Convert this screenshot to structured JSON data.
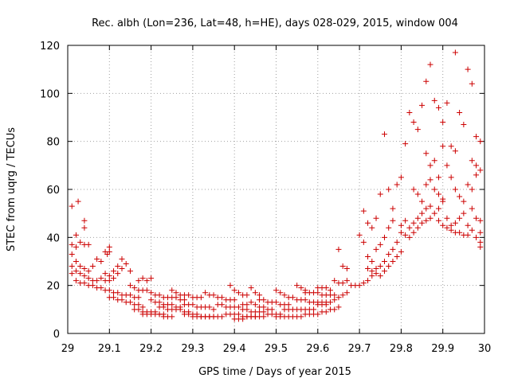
{
  "chart_data": {
    "type": "scatter",
    "title": "Rec. albh (Lon=236, Lat=48, h=HE), days 028-029, 2015, window 004",
    "xlabel": "GPS time / Days of year 2015",
    "ylabel": "STEC from uqrg / TECUs",
    "xlim": [
      29,
      30
    ],
    "ylim": [
      0,
      120
    ],
    "x_ticks": [
      29,
      29.1,
      29.2,
      29.3,
      29.4,
      29.5,
      29.6,
      29.7,
      29.8,
      29.9,
      30
    ],
    "x_tick_labels": [
      "29",
      "29.1",
      "29.2",
      "29.3",
      "29.4",
      "29.5",
      "29.6",
      "29.7",
      "29.8",
      "29.9",
      "30"
    ],
    "y_ticks": [
      0,
      20,
      40,
      60,
      80,
      100,
      120
    ],
    "y_tick_labels": [
      "0",
      "20",
      "40",
      "60",
      "80",
      "100",
      "120"
    ],
    "grid": true,
    "marker": "plus",
    "color": "#cc0000",
    "points": [
      [
        29.01,
        53
      ],
      [
        29.025,
        55
      ],
      [
        29.04,
        44
      ],
      [
        29.04,
        47
      ],
      [
        29.01,
        37
      ],
      [
        29.02,
        36
      ],
      [
        29.03,
        38
      ],
      [
        29.04,
        37
      ],
      [
        29.05,
        37
      ],
      [
        29.01,
        33
      ],
      [
        29.02,
        30
      ],
      [
        29.03,
        28
      ],
      [
        29.04,
        27
      ],
      [
        29.05,
        26
      ],
      [
        29.06,
        28
      ],
      [
        29.07,
        31
      ],
      [
        29.01,
        28
      ],
      [
        29.02,
        26
      ],
      [
        29.03,
        25
      ],
      [
        29.04,
        24
      ],
      [
        29.05,
        23
      ],
      [
        29.06,
        22
      ],
      [
        29.07,
        22
      ],
      [
        29.08,
        23
      ],
      [
        29.01,
        25
      ],
      [
        29.02,
        22
      ],
      [
        29.03,
        21
      ],
      [
        29.04,
        21
      ],
      [
        29.05,
        20
      ],
      [
        29.06,
        20
      ],
      [
        29.07,
        19
      ],
      [
        29.08,
        19
      ],
      [
        29.02,
        41
      ],
      [
        29.09,
        34
      ],
      [
        29.095,
        33
      ],
      [
        29.1,
        36
      ],
      [
        29.1,
        34
      ],
      [
        29.08,
        30
      ],
      [
        29.09,
        25
      ],
      [
        29.1,
        24
      ],
      [
        29.09,
        22
      ],
      [
        29.1,
        22
      ],
      [
        29.11,
        26
      ],
      [
        29.12,
        28
      ],
      [
        29.13,
        27
      ],
      [
        29.12,
        25
      ],
      [
        29.11,
        23
      ],
      [
        29.13,
        31
      ],
      [
        29.14,
        29
      ],
      [
        29.15,
        26
      ],
      [
        29.09,
        18
      ],
      [
        29.1,
        18
      ],
      [
        29.11,
        17
      ],
      [
        29.12,
        17
      ],
      [
        29.13,
        16
      ],
      [
        29.14,
        16
      ],
      [
        29.15,
        16
      ],
      [
        29.16,
        15
      ],
      [
        29.17,
        15
      ],
      [
        29.1,
        15
      ],
      [
        29.11,
        15
      ],
      [
        29.12,
        14
      ],
      [
        29.13,
        14
      ],
      [
        29.14,
        13
      ],
      [
        29.15,
        13
      ],
      [
        29.16,
        12
      ],
      [
        29.17,
        12
      ],
      [
        29.18,
        11
      ],
      [
        29.15,
        20
      ],
      [
        29.16,
        19
      ],
      [
        29.17,
        18
      ],
      [
        29.18,
        18
      ],
      [
        29.19,
        18
      ],
      [
        29.2,
        17
      ],
      [
        29.17,
        22
      ],
      [
        29.18,
        23
      ],
      [
        29.19,
        22
      ],
      [
        29.2,
        23
      ],
      [
        29.16,
        10
      ],
      [
        29.17,
        10
      ],
      [
        29.18,
        9
      ],
      [
        29.19,
        9
      ],
      [
        29.2,
        9
      ],
      [
        29.21,
        9
      ],
      [
        29.22,
        8
      ],
      [
        29.23,
        8
      ],
      [
        29.18,
        8
      ],
      [
        29.19,
        8
      ],
      [
        29.2,
        8
      ],
      [
        29.21,
        8
      ],
      [
        29.22,
        8
      ],
      [
        29.23,
        7
      ],
      [
        29.24,
        7
      ],
      [
        29.25,
        7
      ],
      [
        29.2,
        14
      ],
      [
        29.21,
        13
      ],
      [
        29.22,
        13
      ],
      [
        29.23,
        12
      ],
      [
        29.24,
        12
      ],
      [
        29.25,
        12
      ],
      [
        29.26,
        11
      ],
      [
        29.27,
        11
      ],
      [
        29.21,
        16
      ],
      [
        29.22,
        16
      ],
      [
        29.23,
        15
      ],
      [
        29.24,
        15
      ],
      [
        29.25,
        15
      ],
      [
        29.26,
        15
      ],
      [
        29.27,
        14
      ],
      [
        29.28,
        14
      ],
      [
        29.22,
        11
      ],
      [
        29.23,
        11
      ],
      [
        29.24,
        10
      ],
      [
        29.25,
        10
      ],
      [
        29.26,
        10
      ],
      [
        29.27,
        10
      ],
      [
        29.28,
        9
      ],
      [
        29.29,
        9
      ],
      [
        29.25,
        18
      ],
      [
        29.26,
        17
      ],
      [
        29.27,
        16
      ],
      [
        29.28,
        16
      ],
      [
        29.29,
        16
      ],
      [
        29.3,
        15
      ],
      [
        29.31,
        15
      ],
      [
        29.32,
        15
      ],
      [
        29.28,
        12
      ],
      [
        29.29,
        12
      ],
      [
        29.3,
        12
      ],
      [
        29.31,
        11
      ],
      [
        29.32,
        11
      ],
      [
        29.33,
        11
      ],
      [
        29.34,
        11
      ],
      [
        29.35,
        10
      ],
      [
        29.28,
        8
      ],
      [
        29.29,
        8
      ],
      [
        29.3,
        8
      ],
      [
        29.31,
        8
      ],
      [
        29.32,
        7
      ],
      [
        29.33,
        7
      ],
      [
        29.34,
        7
      ],
      [
        29.35,
        7
      ],
      [
        29.3,
        7
      ],
      [
        29.31,
        7
      ],
      [
        29.32,
        7
      ],
      [
        29.33,
        7
      ],
      [
        29.34,
        7
      ],
      [
        29.35,
        7
      ],
      [
        29.36,
        7
      ],
      [
        29.37,
        7
      ],
      [
        29.33,
        17
      ],
      [
        29.34,
        16
      ],
      [
        29.35,
        16
      ],
      [
        29.36,
        15
      ],
      [
        29.37,
        15
      ],
      [
        29.38,
        14
      ],
      [
        29.39,
        14
      ],
      [
        29.4,
        14
      ],
      [
        29.36,
        12
      ],
      [
        29.37,
        12
      ],
      [
        29.38,
        11
      ],
      [
        29.39,
        11
      ],
      [
        29.4,
        11
      ],
      [
        29.41,
        11
      ],
      [
        29.42,
        10
      ],
      [
        29.43,
        10
      ],
      [
        29.38,
        8
      ],
      [
        29.39,
        8
      ],
      [
        29.4,
        8
      ],
      [
        29.41,
        8
      ],
      [
        29.42,
        7
      ],
      [
        29.43,
        7
      ],
      [
        29.44,
        7
      ],
      [
        29.45,
        7
      ],
      [
        29.39,
        20
      ],
      [
        29.4,
        18
      ],
      [
        29.41,
        17
      ],
      [
        29.42,
        16
      ],
      [
        29.43,
        16
      ],
      [
        29.44,
        19
      ],
      [
        29.45,
        17
      ],
      [
        29.46,
        16
      ],
      [
        29.4,
        6
      ],
      [
        29.41,
        6
      ],
      [
        29.42,
        6
      ],
      [
        29.43,
        7
      ],
      [
        29.44,
        7
      ],
      [
        29.45,
        7
      ],
      [
        29.46,
        7
      ],
      [
        29.47,
        7
      ],
      [
        29.42,
        12
      ],
      [
        29.43,
        12
      ],
      [
        29.44,
        13
      ],
      [
        29.45,
        12
      ],
      [
        29.46,
        11
      ],
      [
        29.47,
        11
      ],
      [
        29.48,
        10
      ],
      [
        29.49,
        10
      ],
      [
        29.44,
        9
      ],
      [
        29.45,
        9
      ],
      [
        29.46,
        9
      ],
      [
        29.47,
        9
      ],
      [
        29.48,
        8
      ],
      [
        29.49,
        8
      ],
      [
        29.5,
        8
      ],
      [
        29.51,
        8
      ],
      [
        29.46,
        14
      ],
      [
        29.47,
        14
      ],
      [
        29.48,
        13
      ],
      [
        29.49,
        13
      ],
      [
        29.5,
        13
      ],
      [
        29.51,
        12
      ],
      [
        29.52,
        12
      ],
      [
        29.53,
        12
      ],
      [
        29.5,
        18
      ],
      [
        29.51,
        17
      ],
      [
        29.52,
        16
      ],
      [
        29.53,
        15
      ],
      [
        29.54,
        15
      ],
      [
        29.55,
        20
      ],
      [
        29.56,
        19
      ],
      [
        29.57,
        18
      ],
      [
        29.5,
        7
      ],
      [
        29.51,
        7
      ],
      [
        29.52,
        7
      ],
      [
        29.53,
        7
      ],
      [
        29.54,
        7
      ],
      [
        29.55,
        7
      ],
      [
        29.56,
        7
      ],
      [
        29.57,
        8
      ],
      [
        29.52,
        10
      ],
      [
        29.53,
        10
      ],
      [
        29.54,
        10
      ],
      [
        29.55,
        10
      ],
      [
        29.56,
        10
      ],
      [
        29.57,
        10
      ],
      [
        29.58,
        10
      ],
      [
        29.59,
        10
      ],
      [
        29.55,
        14
      ],
      [
        29.56,
        14
      ],
      [
        29.57,
        14
      ],
      [
        29.58,
        13
      ],
      [
        29.59,
        13
      ],
      [
        29.6,
        13
      ],
      [
        29.61,
        13
      ],
      [
        29.62,
        13
      ],
      [
        29.57,
        17
      ],
      [
        29.58,
        17
      ],
      [
        29.59,
        17
      ],
      [
        29.6,
        17
      ],
      [
        29.61,
        16
      ],
      [
        29.62,
        16
      ],
      [
        29.63,
        16
      ],
      [
        29.64,
        16
      ],
      [
        29.58,
        8
      ],
      [
        29.59,
        8
      ],
      [
        29.6,
        8
      ],
      [
        29.61,
        9
      ],
      [
        29.62,
        9
      ],
      [
        29.63,
        10
      ],
      [
        29.64,
        10
      ],
      [
        29.65,
        11
      ],
      [
        29.6,
        19
      ],
      [
        29.61,
        19
      ],
      [
        29.62,
        19
      ],
      [
        29.63,
        18
      ],
      [
        29.64,
        22
      ],
      [
        29.65,
        21
      ],
      [
        29.66,
        21
      ],
      [
        29.67,
        22
      ],
      [
        29.6,
        12
      ],
      [
        29.61,
        12
      ],
      [
        29.62,
        12
      ],
      [
        29.63,
        13
      ],
      [
        29.64,
        14
      ],
      [
        29.65,
        15
      ],
      [
        29.66,
        16
      ],
      [
        29.67,
        17
      ],
      [
        29.65,
        35
      ],
      [
        29.66,
        28
      ],
      [
        29.67,
        27
      ],
      [
        29.68,
        20
      ],
      [
        29.69,
        20
      ],
      [
        29.7,
        20
      ],
      [
        29.71,
        21
      ],
      [
        29.72,
        22
      ],
      [
        29.7,
        41
      ],
      [
        29.71,
        51
      ],
      [
        29.72,
        46
      ],
      [
        29.73,
        44
      ],
      [
        29.74,
        48
      ],
      [
        29.75,
        58
      ],
      [
        29.76,
        83
      ],
      [
        29.77,
        60
      ],
      [
        29.71,
        38
      ],
      [
        29.72,
        32
      ],
      [
        29.73,
        30
      ],
      [
        29.74,
        35
      ],
      [
        29.75,
        37
      ],
      [
        29.76,
        40
      ],
      [
        29.77,
        44
      ],
      [
        29.78,
        47
      ],
      [
        29.72,
        27
      ],
      [
        29.73,
        26
      ],
      [
        29.74,
        27
      ],
      [
        29.75,
        28
      ],
      [
        29.76,
        30
      ],
      [
        29.77,
        33
      ],
      [
        29.78,
        35
      ],
      [
        29.79,
        38
      ],
      [
        29.73,
        24
      ],
      [
        29.74,
        25
      ],
      [
        29.75,
        24
      ],
      [
        29.76,
        26
      ],
      [
        29.77,
        28
      ],
      [
        29.78,
        30
      ],
      [
        29.79,
        32
      ],
      [
        29.8,
        34
      ],
      [
        29.78,
        52
      ],
      [
        29.79,
        62
      ],
      [
        29.8,
        65
      ],
      [
        29.81,
        79
      ],
      [
        29.82,
        92
      ],
      [
        29.83,
        88
      ],
      [
        29.84,
        85
      ],
      [
        29.85,
        95
      ],
      [
        29.8,
        45
      ],
      [
        29.81,
        47
      ],
      [
        29.82,
        44
      ],
      [
        29.83,
        46
      ],
      [
        29.84,
        48
      ],
      [
        29.85,
        50
      ],
      [
        29.86,
        52
      ],
      [
        29.87,
        53
      ],
      [
        29.8,
        42
      ],
      [
        29.81,
        41
      ],
      [
        29.82,
        40
      ],
      [
        29.83,
        42
      ],
      [
        29.84,
        44
      ],
      [
        29.85,
        46
      ],
      [
        29.86,
        47
      ],
      [
        29.87,
        48
      ],
      [
        29.83,
        60
      ],
      [
        29.84,
        58
      ],
      [
        29.85,
        55
      ],
      [
        29.86,
        62
      ],
      [
        29.87,
        64
      ],
      [
        29.88,
        60
      ],
      [
        29.89,
        58
      ],
      [
        29.9,
        56
      ],
      [
        29.86,
        105
      ],
      [
        29.87,
        112
      ],
      [
        29.88,
        97
      ],
      [
        29.89,
        94
      ],
      [
        29.9,
        88
      ],
      [
        29.91,
        96
      ],
      [
        29.92,
        78
      ],
      [
        29.93,
        117
      ],
      [
        29.86,
        75
      ],
      [
        29.87,
        70
      ],
      [
        29.88,
        72
      ],
      [
        29.89,
        65
      ],
      [
        29.9,
        78
      ],
      [
        29.91,
        70
      ],
      [
        29.92,
        65
      ],
      [
        29.93,
        76
      ],
      [
        29.88,
        50
      ],
      [
        29.89,
        52
      ],
      [
        29.9,
        55
      ],
      [
        29.91,
        48
      ],
      [
        29.92,
        45
      ],
      [
        29.93,
        46
      ],
      [
        29.94,
        48
      ],
      [
        29.95,
        50
      ],
      [
        29.89,
        47
      ],
      [
        29.9,
        45
      ],
      [
        29.91,
        44
      ],
      [
        29.92,
        43
      ],
      [
        29.93,
        42
      ],
      [
        29.94,
        42
      ],
      [
        29.95,
        41
      ],
      [
        29.96,
        41
      ],
      [
        29.94,
        92
      ],
      [
        29.95,
        87
      ],
      [
        29.96,
        110
      ],
      [
        29.97,
        104
      ],
      [
        29.98,
        82
      ],
      [
        29.99,
        80
      ],
      [
        29.97,
        72
      ],
      [
        29.98,
        70
      ],
      [
        29.93,
        60
      ],
      [
        29.94,
        57
      ],
      [
        29.95,
        55
      ],
      [
        29.96,
        62
      ],
      [
        29.97,
        60
      ],
      [
        29.98,
        66
      ],
      [
        29.99,
        68
      ],
      [
        29.99,
        42
      ],
      [
        29.96,
        45
      ],
      [
        29.97,
        43
      ],
      [
        29.98,
        40
      ],
      [
        29.99,
        38
      ],
      [
        29.99,
        36
      ],
      [
        29.97,
        52
      ],
      [
        29.98,
        48
      ],
      [
        29.99,
        47
      ]
    ]
  }
}
